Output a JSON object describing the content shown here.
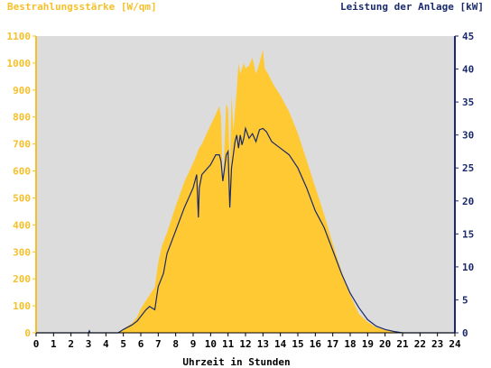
{
  "chart_data": {
    "type": "area",
    "left_axis_title": "Bestrahlungsstärke [W/qm]",
    "right_axis_title": "Leistung der Anlage [kW]",
    "xlabel": "Uhrzeit in Stunden",
    "xlim": [
      0,
      24
    ],
    "ylim_left": [
      0,
      1100
    ],
    "ylim_right": [
      0,
      45
    ],
    "x_ticks": [
      "0",
      "1",
      "2",
      "3",
      "4",
      "5",
      "6",
      "7",
      "8",
      "9",
      "10",
      "11",
      "12",
      "13",
      "14",
      "15",
      "16",
      "17",
      "18",
      "19",
      "20",
      "21",
      "22",
      "23",
      "24"
    ],
    "y_ticks_left": [
      "0",
      "100",
      "200",
      "300",
      "400",
      "500",
      "600",
      "700",
      "800",
      "900",
      "1000",
      "1100"
    ],
    "y_ticks_right": [
      "0",
      "5",
      "10",
      "15",
      "20",
      "25",
      "30",
      "35",
      "40",
      "45"
    ],
    "colors": {
      "irradiance": "#ffc933",
      "power": "#1a2a6c",
      "plot_bg": "#dcdcdc",
      "left_axis": "#f5c02a",
      "right_axis": "#1a2a6c"
    },
    "series": [
      {
        "axis": "left",
        "type": "area",
        "x": [
          0,
          4.7,
          5,
          5.5,
          5.8,
          6,
          6.3,
          6.5,
          6.8,
          7,
          7.2,
          7.5,
          8,
          8.5,
          9,
          9.2,
          9.3,
          9.5,
          10,
          10.3,
          10.5,
          10.6,
          10.7,
          10.9,
          11,
          11.1,
          11.2,
          11.3,
          11.5,
          11.6,
          11.7,
          11.9,
          12,
          12.2,
          12.4,
          12.6,
          12.8,
          13,
          13.1,
          13.3,
          13.6,
          14,
          14.5,
          15,
          15.5,
          16,
          16.5,
          17,
          17.5,
          18,
          18.5,
          19,
          19.5,
          20,
          20.5,
          21,
          24
        ],
        "y": [
          0,
          0,
          15,
          35,
          60,
          90,
          120,
          140,
          170,
          260,
          320,
          370,
          470,
          560,
          630,
          660,
          680,
          700,
          770,
          810,
          840,
          800,
          550,
          850,
          830,
          600,
          880,
          750,
          900,
          1000,
          960,
          1000,
          980,
          990,
          1020,
          960,
          1000,
          1050,
          980,
          960,
          920,
          880,
          820,
          740,
          640,
          540,
          440,
          330,
          230,
          140,
          70,
          40,
          20,
          10,
          5,
          0,
          0
        ]
      },
      {
        "axis": "right",
        "type": "line",
        "x": [
          0,
          3,
          3.05,
          3.1,
          4.7,
          5,
          5.5,
          5.8,
          6,
          6.3,
          6.5,
          6.8,
          7,
          7.3,
          7.5,
          8,
          8.5,
          9,
          9.2,
          9.3,
          9.35,
          9.5,
          10,
          10.3,
          10.5,
          10.6,
          10.7,
          10.8,
          10.9,
          11,
          11.1,
          11.2,
          11.3,
          11.4,
          11.5,
          11.6,
          11.7,
          11.8,
          11.9,
          12,
          12.2,
          12.4,
          12.6,
          12.8,
          13,
          13.2,
          13.5,
          14,
          14.5,
          15,
          15.5,
          16,
          16.5,
          17,
          17.5,
          18,
          18.5,
          19,
          19.5,
          20,
          20.5,
          21,
          24
        ],
        "y": [
          0,
          0,
          0.3,
          0,
          0,
          0.5,
          1.2,
          1.8,
          2.5,
          3.5,
          4,
          3.5,
          7,
          9,
          12,
          15.5,
          19,
          22,
          24,
          17.5,
          22,
          24,
          25.5,
          27,
          27,
          26,
          23,
          25,
          27,
          27.5,
          19,
          25,
          27,
          29,
          30,
          28,
          30,
          28.5,
          29.5,
          31,
          29.5,
          30.2,
          29,
          30.8,
          31,
          30.5,
          29,
          28,
          27,
          25,
          22,
          18.5,
          16,
          12.5,
          9,
          6,
          3.8,
          2,
          1,
          0.5,
          0.2,
          0,
          0
        ]
      }
    ]
  }
}
